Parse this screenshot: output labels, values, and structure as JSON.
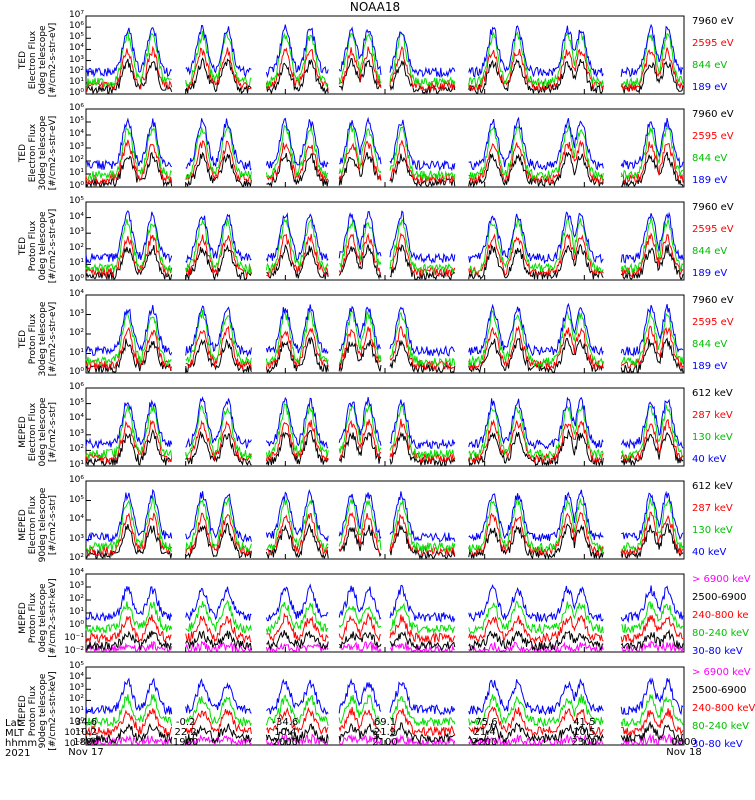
{
  "title": "NOAA18",
  "colors": {
    "blue": "#0000ff",
    "red": "#ff0000",
    "green": "#00e000",
    "black": "#000000",
    "magenta": "#ff00ff"
  },
  "panels": [
    {
      "ylabel": [
        "TED",
        "Electron Flux",
        "0deg telescope",
        "[#/cm2-s-str-eV]"
      ],
      "ticks": [
        "10⁷",
        "10⁶",
        "10⁵",
        "10⁴",
        "10³",
        "10²",
        "10¹",
        "10⁰"
      ],
      "legend": [
        {
          "text": "7960 eV",
          "color": "#000000"
        },
        {
          "text": "2595 eV",
          "color": "#ff0000"
        },
        {
          "text": "844 eV",
          "color": "#00c000"
        },
        {
          "text": "189 eV",
          "color": "#0000ff"
        }
      ]
    },
    {
      "ylabel": [
        "TED",
        "Electron Flux",
        "30deg telescope",
        "[#/cm2-s-str-eV]"
      ],
      "ticks": [
        "10⁶",
        "10⁵",
        "10⁴",
        "10³",
        "10²",
        "10¹",
        "10⁰"
      ],
      "legend": [
        {
          "text": "7960 eV",
          "color": "#000000"
        },
        {
          "text": "2595 eV",
          "color": "#ff0000"
        },
        {
          "text": "844 eV",
          "color": "#00c000"
        },
        {
          "text": "189 eV",
          "color": "#0000ff"
        }
      ]
    },
    {
      "ylabel": [
        "TED",
        "Proton Flux",
        "0deg telescope",
        "[#/cm2-s-str-eV]"
      ],
      "ticks": [
        "10⁵",
        "10⁴",
        "10³",
        "10²",
        "10¹",
        "10⁰"
      ],
      "legend": [
        {
          "text": "7960 eV",
          "color": "#000000"
        },
        {
          "text": "2595 eV",
          "color": "#ff0000"
        },
        {
          "text": "844 eV",
          "color": "#00c000"
        },
        {
          "text": "189 eV",
          "color": "#0000ff"
        }
      ]
    },
    {
      "ylabel": [
        "TED",
        "Proton Flux",
        "30deg telescope",
        "[#/cm2-s-str-eV]"
      ],
      "ticks": [
        "10⁴",
        "10³",
        "10²",
        "10¹",
        "10⁰"
      ],
      "legend": [
        {
          "text": "7960 eV",
          "color": "#000000"
        },
        {
          "text": "2595 eV",
          "color": "#ff0000"
        },
        {
          "text": "844 eV",
          "color": "#00c000"
        },
        {
          "text": "189 eV",
          "color": "#0000ff"
        }
      ]
    },
    {
      "ylabel": [
        "MEPED",
        "Electron Flux",
        "0deg telescope",
        "[#/cm2-s-str]"
      ],
      "ticks": [
        "10⁶",
        "10⁵",
        "10⁴",
        "10³",
        "10²",
        "10¹"
      ],
      "legend": [
        {
          "text": "612 keV",
          "color": "#000000"
        },
        {
          "text": "287 keV",
          "color": "#ff0000"
        },
        {
          "text": "130 keV",
          "color": "#00c000"
        },
        {
          "text": "40 keV",
          "color": "#0000ff"
        }
      ]
    },
    {
      "ylabel": [
        "MEPED",
        "Electron Flux",
        "90deg telescope",
        "[#/cm2-s-str]"
      ],
      "ticks": [
        "10⁶",
        "10⁵",
        "10⁴",
        "10³",
        "10²"
      ],
      "legend": [
        {
          "text": "612 keV",
          "color": "#000000"
        },
        {
          "text": "287 keV",
          "color": "#ff0000"
        },
        {
          "text": "130 keV",
          "color": "#00c000"
        },
        {
          "text": "40 keV",
          "color": "#0000ff"
        }
      ]
    },
    {
      "ylabel": [
        "MEPED",
        "Proton Flux",
        "0deg telescope",
        "[#/cm2-s-str-keV]"
      ],
      "ticks": [
        "10⁴",
        "10³",
        "10²",
        "10¹",
        "10⁰",
        "10⁻¹",
        "10⁻²"
      ],
      "legend": [
        {
          "text": "> 6900 keV",
          "color": "#ff00ff"
        },
        {
          "text": "2500-6900",
          "color": "#000000"
        },
        {
          "text": "240-800 ke",
          "color": "#ff0000"
        },
        {
          "text": "80-240 keV",
          "color": "#00c000"
        },
        {
          "text": "30-80 keV",
          "color": "#0000ff"
        }
      ]
    },
    {
      "ylabel": [
        "MEPED",
        "Proton Flux",
        "90deg telescope",
        "[#/cm2-s-str-keV]"
      ],
      "ticks": [
        "10⁵",
        "10⁴",
        "10³",
        "10²",
        "10¹",
        "10⁰",
        "10⁻¹",
        "10⁻²"
      ],
      "legend": [
        {
          "text": "> 6900 keV",
          "color": "#ff00ff"
        },
        {
          "text": "2500-6900",
          "color": "#000000"
        },
        {
          "text": "240-800 keV",
          "color": "#ff0000"
        },
        {
          "text": "80-240 keV",
          "color": "#00c000"
        },
        {
          "text": "30-80 keV",
          "color": "#0000ff"
        }
      ]
    }
  ],
  "xaxis": {
    "row_labels": [
      "Lat",
      "MLT",
      "hhmm",
      "2021"
    ],
    "columns": [
      {
        "lat": "34.6",
        "mlt": "10.2",
        "hhmm": "1800",
        "date": "Nov 17"
      },
      {
        "lat": "-0.2",
        "mlt": "22.2",
        "hhmm": "1900",
        "date": ""
      },
      {
        "lat": "-34.6",
        "mlt": "10.4",
        "hhmm": "2000",
        "date": ""
      },
      {
        "lat": "69.1",
        "mlt": "21.9",
        "hhmm": "2100",
        "date": ""
      },
      {
        "lat": "-75.6",
        "mlt": "21.4",
        "hhmm": "2200",
        "date": ""
      },
      {
        "lat": "41.5",
        "mlt": "10.5",
        "hhmm": "2300",
        "date": ""
      },
      {
        "lat": "",
        "mlt": "",
        "hhmm": "0000",
        "date": "Nov 18"
      }
    ]
  },
  "chart_data": {
    "type": "line",
    "title": "NOAA18",
    "x": [
      "1800",
      "1900",
      "2000",
      "2100",
      "2200",
      "2300",
      "0000"
    ],
    "xlabel": "hhmm",
    "yscale": "log",
    "orbit_pass_centers_hhmm": [
      "1825",
      "1840",
      "1910",
      "1925",
      "2000",
      "2015",
      "2040",
      "2050",
      "2110",
      "2200",
      "2215",
      "2245",
      "2255",
      "2340",
      "2350"
    ],
    "series": [
      {
        "panel": "TED electron 0deg",
        "name": "189 eV",
        "color": "blue",
        "baseline": 100,
        "peak": 1000000
      },
      {
        "panel": "TED electron 0deg",
        "name": "844 eV",
        "color": "green",
        "baseline": 10,
        "peak": 1000000
      },
      {
        "panel": "TED electron 0deg",
        "name": "2595 eV",
        "color": "red",
        "baseline": 10,
        "peak": 10000
      },
      {
        "panel": "TED electron 0deg",
        "name": "7960 eV",
        "color": "black",
        "baseline": 1,
        "peak": 1000
      },
      {
        "panel": "MEPED electron 0deg",
        "name": "40 keV",
        "color": "blue",
        "baseline": 100,
        "peak": 1000000
      },
      {
        "panel": "MEPED electron 90deg",
        "name": "40 keV",
        "color": "blue",
        "baseline": 100,
        "peak": 1000000
      },
      {
        "panel": "MEPED proton 0deg",
        "name": "30-80 keV",
        "color": "blue",
        "baseline": 1,
        "peak": 1000
      },
      {
        "panel": "MEPED proton 90deg",
        "name": "30-80 keV",
        "color": "blue",
        "baseline": 1,
        "peak": 10000
      }
    ]
  }
}
